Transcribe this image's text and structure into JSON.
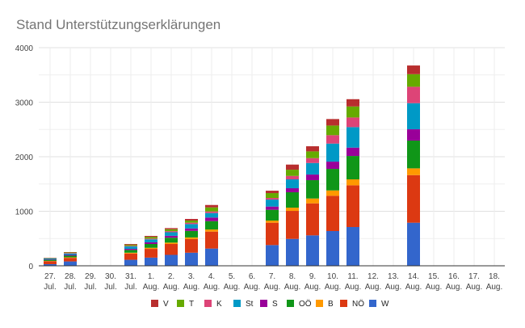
{
  "chart_data": {
    "type": "bar",
    "stacked": true,
    "title": "Stand Unterstützungserklärungen",
    "xlabel": "",
    "ylabel": "",
    "ylim": [
      0,
      4000
    ],
    "yticks": [
      0,
      1000,
      2000,
      3000,
      4000
    ],
    "grid": true,
    "legend_position": "bottom",
    "categories": [
      [
        "27.",
        "Jul."
      ],
      [
        "28.",
        "Jul."
      ],
      [
        "29.",
        "Jul."
      ],
      [
        "30.",
        "Jul."
      ],
      [
        "31.",
        "Jul."
      ],
      [
        "1.",
        "Aug."
      ],
      [
        "2.",
        "Aug."
      ],
      [
        "3.",
        "Aug."
      ],
      [
        "4.",
        "Aug."
      ],
      [
        "5.",
        "Aug."
      ],
      [
        "6.",
        "Aug."
      ],
      [
        "7.",
        "Aug."
      ],
      [
        "8.",
        "Aug."
      ],
      [
        "9.",
        "Aug."
      ],
      [
        "10.",
        "Aug."
      ],
      [
        "11.",
        "Aug."
      ],
      [
        "12.",
        "Aug."
      ],
      [
        "13.",
        "Aug."
      ],
      [
        "14.",
        "Aug."
      ],
      [
        "15.",
        "Aug."
      ],
      [
        "16.",
        "Aug."
      ],
      [
        "17.",
        "Aug."
      ],
      [
        "18.",
        "Aug."
      ]
    ],
    "series": [
      {
        "name": "W",
        "color": "#3366cc",
        "values": [
          30,
          80,
          0,
          0,
          110,
          150,
          200,
          240,
          316,
          0,
          0,
          380,
          493,
          558,
          637,
          711,
          0,
          0,
          790,
          0,
          0,
          0,
          0
        ]
      },
      {
        "name": "NÖ",
        "color": "#dc3912",
        "values": [
          55,
          65,
          0,
          0,
          115,
          160,
          200,
          250,
          311,
          0,
          0,
          410,
          514,
          587,
          647,
          765,
          0,
          0,
          873,
          0,
          0,
          0,
          0
        ]
      },
      {
        "name": "B",
        "color": "#ff9900",
        "values": [
          5,
          10,
          0,
          0,
          15,
          20,
          25,
          30,
          39,
          0,
          0,
          39,
          59,
          89,
          98,
          109,
          0,
          0,
          124,
          0,
          0,
          0,
          0
        ]
      },
      {
        "name": "OÖ",
        "color": "#109618",
        "values": [
          20,
          30,
          0,
          0,
          50,
          70,
          90,
          120,
          153,
          0,
          0,
          198,
          282,
          336,
          395,
          429,
          0,
          0,
          509,
          0,
          0,
          0,
          0
        ]
      },
      {
        "name": "S",
        "color": "#990099",
        "values": [
          8,
          15,
          0,
          0,
          20,
          30,
          35,
          45,
          65,
          0,
          0,
          59,
          74,
          103,
          133,
          153,
          0,
          0,
          207,
          0,
          0,
          0,
          0
        ]
      },
      {
        "name": "St",
        "color": "#0099c6",
        "values": [
          15,
          25,
          0,
          0,
          45,
          55,
          65,
          80,
          83,
          0,
          0,
          128,
          163,
          212,
          331,
          376,
          0,
          0,
          479,
          0,
          0,
          0,
          0
        ]
      },
      {
        "name": "K",
        "color": "#dd4477",
        "values": [
          5,
          10,
          0,
          0,
          12,
          15,
          20,
          25,
          30,
          0,
          0,
          30,
          63,
          89,
          154,
          177,
          0,
          0,
          301,
          0,
          0,
          0,
          0
        ]
      },
      {
        "name": "T",
        "color": "#66aa00",
        "values": [
          6,
          10,
          0,
          0,
          20,
          30,
          35,
          40,
          74,
          0,
          0,
          89,
          114,
          124,
          177,
          202,
          0,
          0,
          231,
          0,
          0,
          0,
          0
        ]
      },
      {
        "name": "V",
        "color": "#b82e2e",
        "values": [
          4,
          7,
          0,
          0,
          13,
          18,
          21,
          29,
          44,
          0,
          0,
          44,
          94,
          94,
          119,
          133,
          0,
          0,
          159,
          0,
          0,
          0,
          0
        ]
      }
    ],
    "legend_order": [
      "V",
      "T",
      "K",
      "St",
      "S",
      "OÖ",
      "B",
      "NÖ",
      "W"
    ]
  }
}
